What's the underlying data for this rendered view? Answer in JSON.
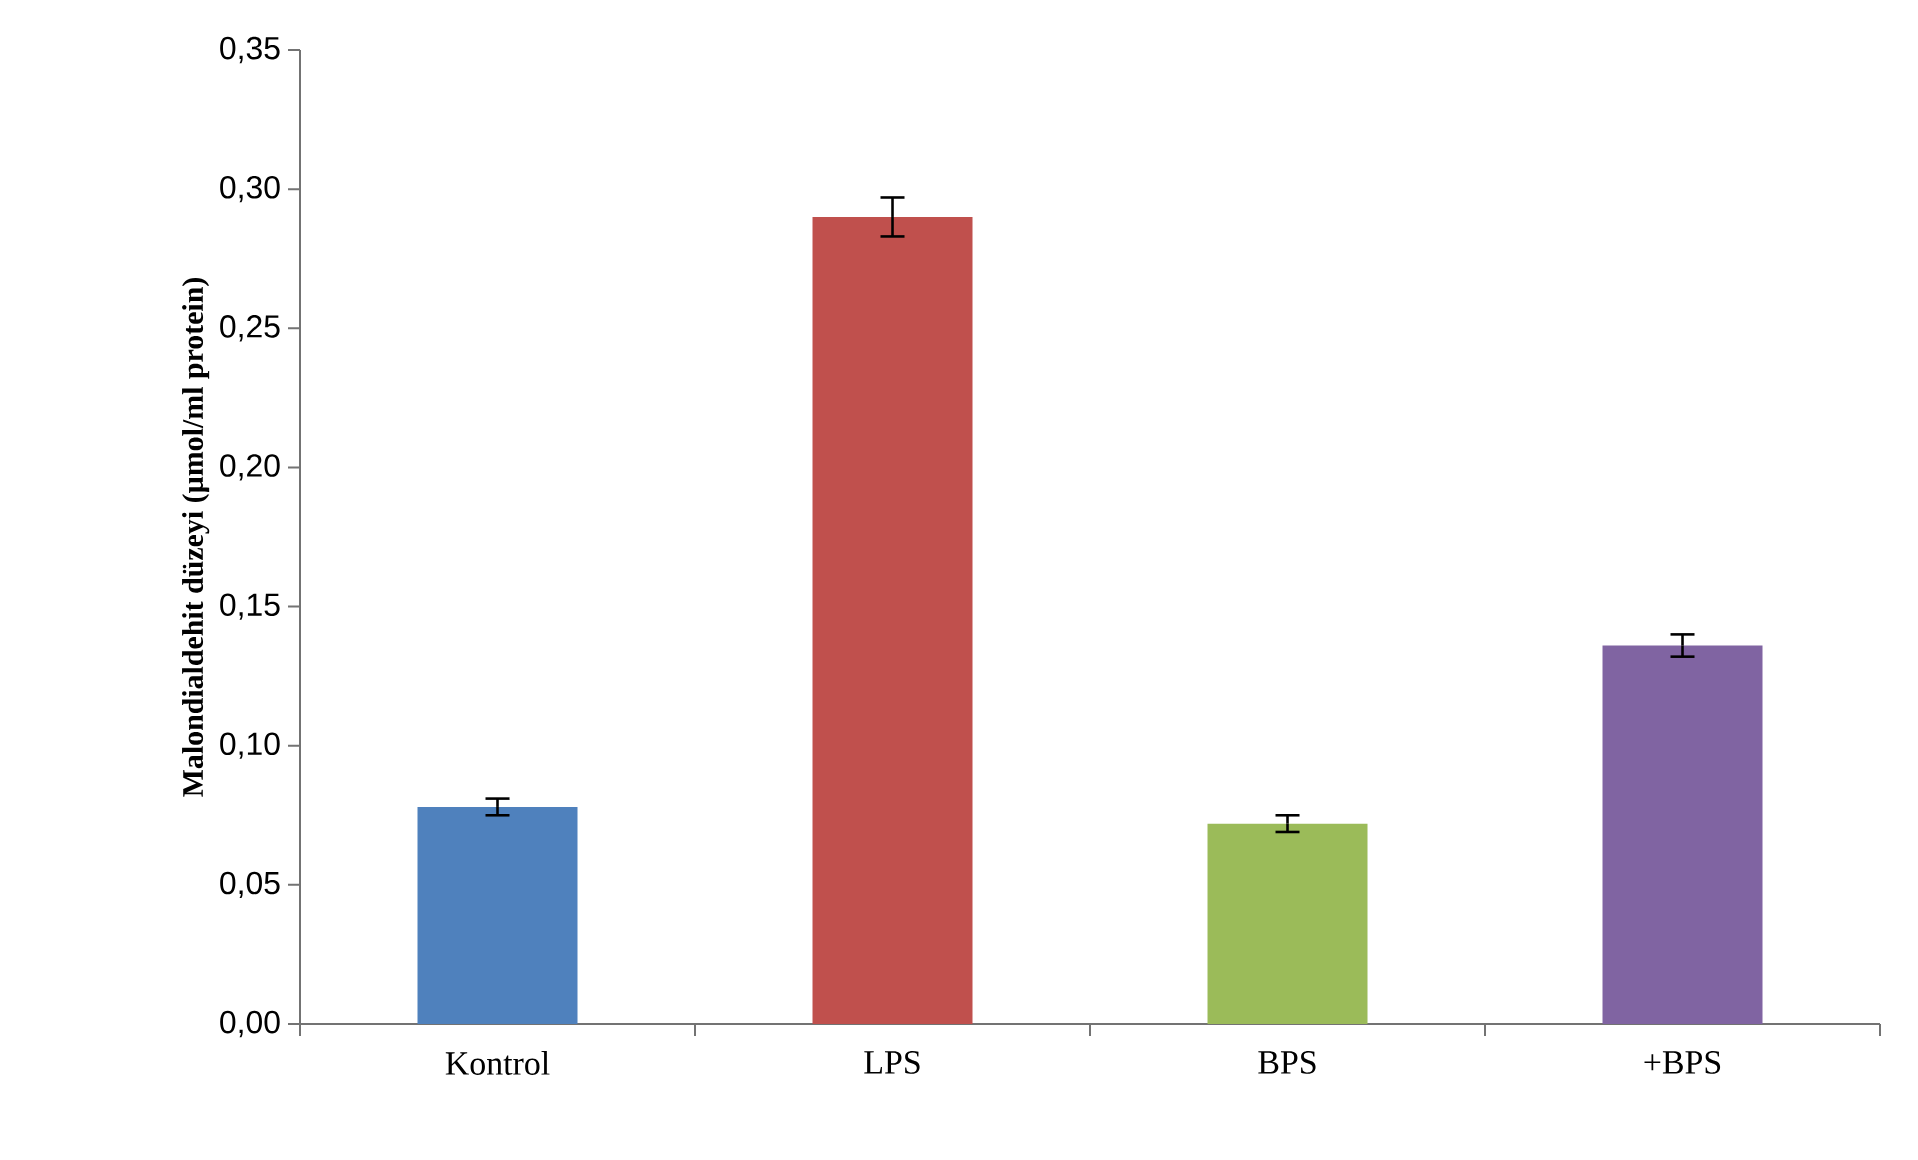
{
  "chart_data": {
    "type": "bar",
    "ylabel": "Malondialdehit düzeyi (µmol/ml protein)",
    "categories": [
      "Kontrol",
      "LPS",
      "BPS",
      "+BPS"
    ],
    "values": [
      0.078,
      0.29,
      0.072,
      0.136
    ],
    "errors": [
      0.003,
      0.007,
      0.003,
      0.004
    ],
    "colors": [
      "#4f81bd",
      "#c0504d",
      "#9bbb59",
      "#8064a2"
    ],
    "ylim": [
      0,
      0.35
    ],
    "yticks": [
      {
        "value": 0,
        "label": "0,00"
      },
      {
        "value": 0.05,
        "label": "0,05"
      },
      {
        "value": 0.1,
        "label": "0,10"
      },
      {
        "value": 0.15,
        "label": "0,15"
      },
      {
        "value": 0.2,
        "label": "0,20"
      },
      {
        "value": 0.25,
        "label": "0,25"
      },
      {
        "value": 0.3,
        "label": "0,30"
      },
      {
        "value": 0.35,
        "label": "0,35"
      }
    ],
    "grid": false
  }
}
